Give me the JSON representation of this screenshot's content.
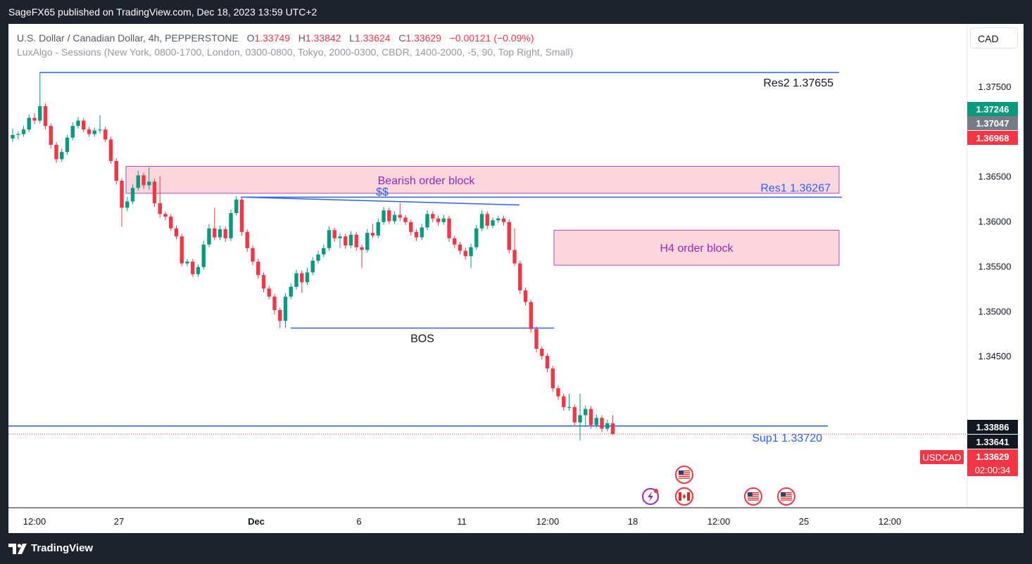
{
  "header": {
    "published": "SageFX65 published on TradingView.com, Dec 18, 2023 13:59 UTC+2"
  },
  "legend": {
    "symbol": "U.S. Dollar / Canadian Dollar, 4h, PEPPERSTONE",
    "o_label": "O",
    "o": "1.33749",
    "h_label": "H",
    "h": "1.33842",
    "l_label": "L",
    "l": "1.33624",
    "c_label": "C",
    "c": "1.33629",
    "change": "−0.00121 (−0.09%)",
    "indicator": "LuxAlgo - Sessions (New York, 0800-1700, London, 0300-0800, Tokyo, 2000-0300, CBDR, 1400-2000, -5, 90, Top Right, Small)"
  },
  "currency_button": "CAD",
  "footer": {
    "brand": "TradingView"
  },
  "colors": {
    "up": "#089981",
    "down": "#f23645",
    "line": "#2962ff",
    "zone_fill": "#fbd6dd",
    "zone_border": "#9c27b0",
    "zone_text": "#9c27b0",
    "axis_text": "#787b86"
  },
  "chart_data": {
    "type": "candlestick",
    "ylim": [
      1.3281,
      1.38196
    ],
    "y_ticks": [
      "1.34500",
      "1.35000",
      "1.35500",
      "1.36000",
      "1.36500",
      "1.37500"
    ],
    "x_ticks": [
      "12:00",
      "27",
      "Dec",
      "6",
      "11",
      "12:00",
      "18",
      "12:00",
      "25",
      "12:00"
    ],
    "close_path": [
      1.3696,
      1.3697,
      1.3702,
      1.3715,
      1.3712,
      1.3728,
      1.3706,
      1.3685,
      1.3669,
      1.3677,
      1.3693,
      1.3706,
      1.3712,
      1.3702,
      1.3697,
      1.3701,
      1.3702,
      1.3691,
      1.3667,
      1.3645,
      1.3615,
      1.3622,
      1.3637,
      1.3651,
      1.364,
      1.3644,
      1.362,
      1.3608,
      1.3605,
      1.3592,
      1.3583,
      1.3553,
      1.3555,
      1.3541,
      1.3549,
      1.3574,
      1.3592,
      1.3582,
      1.3591,
      1.3581,
      1.3609,
      1.3624,
      1.3588,
      1.357,
      1.3555,
      1.354,
      1.3525,
      1.3516,
      1.3501,
      1.3489,
      1.3516,
      1.3527,
      1.3542,
      1.3532,
      1.3543,
      1.3556,
      1.3563,
      1.357,
      1.359,
      1.3581,
      1.3583,
      1.3573,
      1.3585,
      1.3571,
      1.3568,
      1.3587,
      1.3584,
      1.3599,
      1.3612,
      1.36,
      1.3607,
      1.3604,
      1.3599,
      1.3588,
      1.3582,
      1.3593,
      1.3608,
      1.3603,
      1.3599,
      1.3603,
      1.3581,
      1.3574,
      1.3567,
      1.3561,
      1.3571,
      1.3592,
      1.3608,
      1.3595,
      1.3601,
      1.3603,
      1.3599,
      1.3568,
      1.3553,
      1.3523,
      1.351,
      1.348,
      1.3458,
      1.345,
      1.3436,
      1.3414,
      1.3405,
      1.3393,
      1.3393,
      1.3376,
      1.3384,
      1.3391,
      1.3373,
      1.3381,
      1.3369,
      1.3375,
      1.3363
    ],
    "candles": [
      {
        "o": 1.3692,
        "h": 1.3703,
        "l": 1.3688,
        "c": 1.3696
      },
      {
        "o": 1.3696,
        "h": 1.37,
        "l": 1.3691,
        "c": 1.3697
      },
      {
        "o": 1.3697,
        "h": 1.3706,
        "l": 1.3694,
        "c": 1.3702
      },
      {
        "o": 1.3702,
        "h": 1.3719,
        "l": 1.3699,
        "c": 1.3715
      },
      {
        "o": 1.3715,
        "h": 1.372,
        "l": 1.3708,
        "c": 1.3712
      },
      {
        "o": 1.3712,
        "h": 1.3766,
        "l": 1.3709,
        "c": 1.3728
      },
      {
        "o": 1.3728,
        "h": 1.3731,
        "l": 1.3702,
        "c": 1.3706
      },
      {
        "o": 1.3706,
        "h": 1.3709,
        "l": 1.3681,
        "c": 1.3685
      },
      {
        "o": 1.3685,
        "h": 1.3688,
        "l": 1.3665,
        "c": 1.3669
      },
      {
        "o": 1.3669,
        "h": 1.3681,
        "l": 1.3666,
        "c": 1.3677
      },
      {
        "o": 1.3677,
        "h": 1.3696,
        "l": 1.3674,
        "c": 1.3693
      },
      {
        "o": 1.3693,
        "h": 1.371,
        "l": 1.369,
        "c": 1.3706
      },
      {
        "o": 1.3706,
        "h": 1.3716,
        "l": 1.3703,
        "c": 1.3712
      },
      {
        "o": 1.3712,
        "h": 1.3715,
        "l": 1.3699,
        "c": 1.3702
      },
      {
        "o": 1.3702,
        "h": 1.3705,
        "l": 1.3694,
        "c": 1.3697
      },
      {
        "o": 1.3697,
        "h": 1.3704,
        "l": 1.3694,
        "c": 1.3701
      },
      {
        "o": 1.3701,
        "h": 1.3718,
        "l": 1.3698,
        "c": 1.3702
      },
      {
        "o": 1.3702,
        "h": 1.3705,
        "l": 1.3688,
        "c": 1.3691
      },
      {
        "o": 1.3691,
        "h": 1.3694,
        "l": 1.3664,
        "c": 1.3667
      },
      {
        "o": 1.3667,
        "h": 1.367,
        "l": 1.3641,
        "c": 1.3645
      },
      {
        "o": 1.3645,
        "h": 1.3648,
        "l": 1.3594,
        "c": 1.3615
      },
      {
        "o": 1.3615,
        "h": 1.3627,
        "l": 1.3611,
        "c": 1.3622
      },
      {
        "o": 1.3622,
        "h": 1.3641,
        "l": 1.3619,
        "c": 1.3637
      },
      {
        "o": 1.3637,
        "h": 1.3656,
        "l": 1.3634,
        "c": 1.3651
      },
      {
        "o": 1.3651,
        "h": 1.3654,
        "l": 1.3636,
        "c": 1.364
      },
      {
        "o": 1.364,
        "h": 1.366,
        "l": 1.3635,
        "c": 1.3644
      },
      {
        "o": 1.3644,
        "h": 1.3647,
        "l": 1.3616,
        "c": 1.362
      },
      {
        "o": 1.362,
        "h": 1.365,
        "l": 1.3604,
        "c": 1.3608
      },
      {
        "o": 1.3608,
        "h": 1.3611,
        "l": 1.3601,
        "c": 1.3605
      },
      {
        "o": 1.3605,
        "h": 1.3608,
        "l": 1.3589,
        "c": 1.3592
      },
      {
        "o": 1.3592,
        "h": 1.3595,
        "l": 1.358,
        "c": 1.3583
      },
      {
        "o": 1.3583,
        "h": 1.3586,
        "l": 1.355,
        "c": 1.3553
      },
      {
        "o": 1.3553,
        "h": 1.3558,
        "l": 1.355,
        "c": 1.3555
      },
      {
        "o": 1.3555,
        "h": 1.3558,
        "l": 1.3538,
        "c": 1.3541
      },
      {
        "o": 1.3541,
        "h": 1.3552,
        "l": 1.3538,
        "c": 1.3549
      },
      {
        "o": 1.3549,
        "h": 1.3578,
        "l": 1.3546,
        "c": 1.3574
      },
      {
        "o": 1.3574,
        "h": 1.3597,
        "l": 1.3571,
        "c": 1.3592
      },
      {
        "o": 1.3592,
        "h": 1.3615,
        "l": 1.3579,
        "c": 1.3582
      },
      {
        "o": 1.3582,
        "h": 1.3595,
        "l": 1.3579,
        "c": 1.3591
      },
      {
        "o": 1.3591,
        "h": 1.3594,
        "l": 1.3577,
        "c": 1.3581
      },
      {
        "o": 1.3581,
        "h": 1.3613,
        "l": 1.3578,
        "c": 1.3609
      },
      {
        "o": 1.3609,
        "h": 1.3628,
        "l": 1.3606,
        "c": 1.3624
      },
      {
        "o": 1.3624,
        "h": 1.3627,
        "l": 1.3584,
        "c": 1.3588
      },
      {
        "o": 1.3588,
        "h": 1.3591,
        "l": 1.3566,
        "c": 1.357
      },
      {
        "o": 1.357,
        "h": 1.3573,
        "l": 1.3551,
        "c": 1.3555
      },
      {
        "o": 1.3555,
        "h": 1.3558,
        "l": 1.3536,
        "c": 1.354
      },
      {
        "o": 1.354,
        "h": 1.3543,
        "l": 1.3521,
        "c": 1.3525
      },
      {
        "o": 1.3525,
        "h": 1.3528,
        "l": 1.3513,
        "c": 1.3516
      },
      {
        "o": 1.3516,
        "h": 1.3519,
        "l": 1.3496,
        "c": 1.3501
      },
      {
        "o": 1.3501,
        "h": 1.3504,
        "l": 1.3481,
        "c": 1.3489
      },
      {
        "o": 1.3489,
        "h": 1.352,
        "l": 1.3481,
        "c": 1.3516
      },
      {
        "o": 1.3516,
        "h": 1.3531,
        "l": 1.3513,
        "c": 1.3527
      },
      {
        "o": 1.3527,
        "h": 1.3546,
        "l": 1.3524,
        "c": 1.3542
      },
      {
        "o": 1.3542,
        "h": 1.3545,
        "l": 1.352,
        "c": 1.3532
      },
      {
        "o": 1.3532,
        "h": 1.3548,
        "l": 1.3529,
        "c": 1.3543
      },
      {
        "o": 1.3543,
        "h": 1.356,
        "l": 1.354,
        "c": 1.3556
      },
      {
        "o": 1.3556,
        "h": 1.3567,
        "l": 1.3553,
        "c": 1.3563
      },
      {
        "o": 1.3563,
        "h": 1.3574,
        "l": 1.356,
        "c": 1.357
      },
      {
        "o": 1.357,
        "h": 1.3594,
        "l": 1.3567,
        "c": 1.359
      },
      {
        "o": 1.359,
        "h": 1.3593,
        "l": 1.3577,
        "c": 1.3581
      },
      {
        "o": 1.3581,
        "h": 1.3587,
        "l": 1.357,
        "c": 1.3583
      },
      {
        "o": 1.3583,
        "h": 1.3586,
        "l": 1.3569,
        "c": 1.3573
      },
      {
        "o": 1.3573,
        "h": 1.3589,
        "l": 1.357,
        "c": 1.3585
      },
      {
        "o": 1.3585,
        "h": 1.3588,
        "l": 1.3567,
        "c": 1.3571
      },
      {
        "o": 1.3571,
        "h": 1.3574,
        "l": 1.3548,
        "c": 1.3568
      },
      {
        "o": 1.3568,
        "h": 1.3591,
        "l": 1.3565,
        "c": 1.3587
      },
      {
        "o": 1.3587,
        "h": 1.3597,
        "l": 1.3581,
        "c": 1.3584
      },
      {
        "o": 1.3584,
        "h": 1.3603,
        "l": 1.3581,
        "c": 1.3599
      },
      {
        "o": 1.3599,
        "h": 1.3616,
        "l": 1.3596,
        "c": 1.3612
      },
      {
        "o": 1.3612,
        "h": 1.3615,
        "l": 1.3597,
        "c": 1.36
      },
      {
        "o": 1.36,
        "h": 1.3611,
        "l": 1.3597,
        "c": 1.3607
      },
      {
        "o": 1.3607,
        "h": 1.362,
        "l": 1.36,
        "c": 1.3604
      },
      {
        "o": 1.3604,
        "h": 1.3607,
        "l": 1.3596,
        "c": 1.3599
      },
      {
        "o": 1.3599,
        "h": 1.3602,
        "l": 1.3584,
        "c": 1.3588
      },
      {
        "o": 1.3588,
        "h": 1.3591,
        "l": 1.3578,
        "c": 1.3582
      },
      {
        "o": 1.3582,
        "h": 1.3597,
        "l": 1.3579,
        "c": 1.3593
      },
      {
        "o": 1.3593,
        "h": 1.3612,
        "l": 1.359,
        "c": 1.3608
      },
      {
        "o": 1.3608,
        "h": 1.3611,
        "l": 1.3599,
        "c": 1.3603
      },
      {
        "o": 1.3603,
        "h": 1.3606,
        "l": 1.3595,
        "c": 1.3599
      },
      {
        "o": 1.3599,
        "h": 1.3607,
        "l": 1.3596,
        "c": 1.3603
      },
      {
        "o": 1.3603,
        "h": 1.3606,
        "l": 1.3577,
        "c": 1.3581
      },
      {
        "o": 1.3581,
        "h": 1.3584,
        "l": 1.357,
        "c": 1.3574
      },
      {
        "o": 1.3574,
        "h": 1.3577,
        "l": 1.3563,
        "c": 1.3567
      },
      {
        "o": 1.3567,
        "h": 1.357,
        "l": 1.3557,
        "c": 1.3561
      },
      {
        "o": 1.3561,
        "h": 1.3575,
        "l": 1.3548,
        "c": 1.3571
      },
      {
        "o": 1.3571,
        "h": 1.3596,
        "l": 1.3568,
        "c": 1.3592
      },
      {
        "o": 1.3592,
        "h": 1.3612,
        "l": 1.3589,
        "c": 1.3608
      },
      {
        "o": 1.3608,
        "h": 1.3611,
        "l": 1.3591,
        "c": 1.3595
      },
      {
        "o": 1.3595,
        "h": 1.3604,
        "l": 1.3592,
        "c": 1.3601
      },
      {
        "o": 1.3601,
        "h": 1.3606,
        "l": 1.3598,
        "c": 1.3603
      },
      {
        "o": 1.3603,
        "h": 1.3606,
        "l": 1.3595,
        "c": 1.3599
      },
      {
        "o": 1.3599,
        "h": 1.3602,
        "l": 1.3564,
        "c": 1.3568
      },
      {
        "o": 1.3568,
        "h": 1.3592,
        "l": 1.355,
        "c": 1.3553
      },
      {
        "o": 1.3553,
        "h": 1.3556,
        "l": 1.3519,
        "c": 1.3523
      },
      {
        "o": 1.3523,
        "h": 1.3526,
        "l": 1.3506,
        "c": 1.351
      },
      {
        "o": 1.351,
        "h": 1.3513,
        "l": 1.3476,
        "c": 1.348
      },
      {
        "o": 1.348,
        "h": 1.3483,
        "l": 1.3454,
        "c": 1.3458
      },
      {
        "o": 1.3458,
        "h": 1.3461,
        "l": 1.3446,
        "c": 1.345
      },
      {
        "o": 1.345,
        "h": 1.3453,
        "l": 1.3432,
        "c": 1.3436
      },
      {
        "o": 1.3436,
        "h": 1.3439,
        "l": 1.341,
        "c": 1.3414
      },
      {
        "o": 1.3414,
        "h": 1.3417,
        "l": 1.3401,
        "c": 1.3405
      },
      {
        "o": 1.3405,
        "h": 1.3408,
        "l": 1.3389,
        "c": 1.3393
      },
      {
        "o": 1.3393,
        "h": 1.3408,
        "l": 1.3389,
        "c": 1.3393
      },
      {
        "o": 1.3393,
        "h": 1.3396,
        "l": 1.3372,
        "c": 1.3376
      },
      {
        "o": 1.3376,
        "h": 1.3408,
        "l": 1.3356,
        "c": 1.3384
      },
      {
        "o": 1.3384,
        "h": 1.3395,
        "l": 1.3371,
        "c": 1.3391
      },
      {
        "o": 1.3391,
        "h": 1.3394,
        "l": 1.3369,
        "c": 1.3373
      },
      {
        "o": 1.3373,
        "h": 1.3385,
        "l": 1.337,
        "c": 1.3381
      },
      {
        "o": 1.3381,
        "h": 1.3384,
        "l": 1.3365,
        "c": 1.3369
      },
      {
        "o": 1.3369,
        "h": 1.3379,
        "l": 1.3366,
        "c": 1.3375
      },
      {
        "o": 1.3375,
        "h": 1.3384,
        "l": 1.3362,
        "c": 1.3363
      }
    ],
    "levels": [
      {
        "label": "Res2  1.37655",
        "value": 1.37655
      },
      {
        "label": "Res1 1.36267",
        "value": 1.36267
      },
      {
        "label": "Sup1 1.33720",
        "value": 1.3372
      }
    ],
    "zones": [
      {
        "label": "Bearish order block",
        "top": 1.3661,
        "bottom": 1.3631
      },
      {
        "label": "H4 order block",
        "top": 1.359,
        "bottom": 1.3551
      }
    ],
    "annotations": [
      {
        "label": "$$",
        "value": 1.3627
      },
      {
        "label": "BOS",
        "value": 1.3481
      }
    ],
    "price_labels": [
      {
        "text": "1.37246",
        "color": "#089981"
      },
      {
        "text": "1.37047",
        "color": "#787b86"
      },
      {
        "text": "1.36968",
        "color": "#f23645"
      },
      {
        "text": "1.33886",
        "color": "#131722"
      },
      {
        "text": "1.33641",
        "color": "#131722"
      },
      {
        "text": "1.33629",
        "color": "#f23645"
      }
    ],
    "symbol_tag": "USDCAD",
    "countdown": "02:00:34",
    "events": [
      "us-flag-icon",
      "us-flag-icon",
      "ca-flag-icon",
      "us-flag-icon",
      "us-flag-icon",
      "lightning-icon"
    ]
  }
}
